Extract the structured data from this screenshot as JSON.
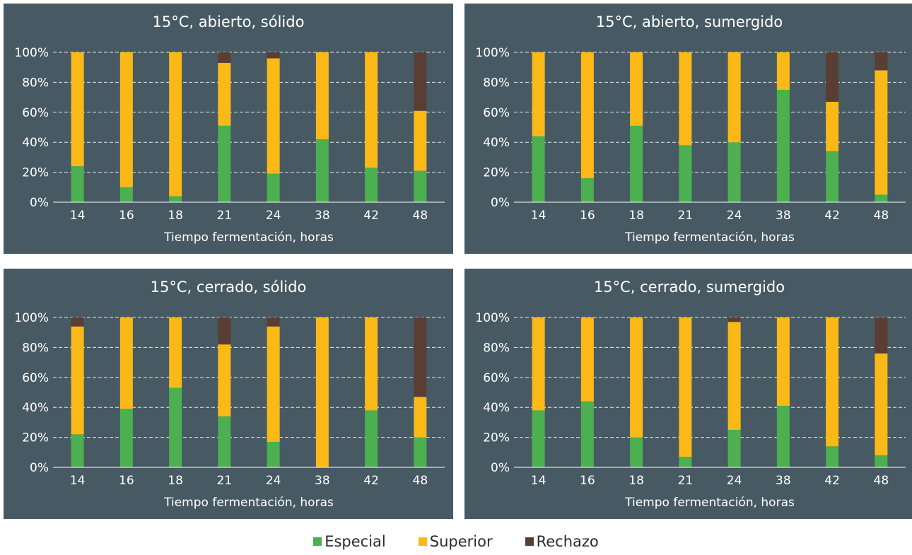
{
  "colors": {
    "especial": "#4caf50",
    "superior": "#fbb917",
    "rechazo": "#5a3d33",
    "panel": "#475a64",
    "grid": "#ffffff"
  },
  "legend": [
    {
      "key": "especial",
      "label": "Especial",
      "color": "#4caf50"
    },
    {
      "key": "superior",
      "label": "Superior",
      "color": "#fbb917"
    },
    {
      "key": "rechazo",
      "label": "Rechazo",
      "color": "#5a3d33"
    }
  ],
  "chart_data": [
    {
      "type": "bar",
      "stacked": true,
      "title": "15°C, abierto, sólido",
      "xlabel": "Tiempo fermentación, horas",
      "ylabel": "",
      "ylim": [
        0,
        100
      ],
      "yticks": [
        "0%",
        "20%",
        "40%",
        "60%",
        "80%",
        "100%"
      ],
      "categories": [
        "14",
        "16",
        "18",
        "21",
        "24",
        "38",
        "42",
        "48"
      ],
      "series": [
        {
          "name": "Especial",
          "values": [
            24,
            10,
            4,
            51,
            19,
            42,
            23,
            21
          ]
        },
        {
          "name": "Superior",
          "values": [
            76,
            90,
            96,
            42,
            77,
            58,
            77,
            40
          ]
        },
        {
          "name": "Rechazo",
          "values": [
            0,
            0,
            0,
            7,
            4,
            0,
            0,
            39
          ]
        }
      ]
    },
    {
      "type": "bar",
      "stacked": true,
      "title": "15°C, abierto, sumergido",
      "xlabel": "Tiempo fermentación, horas",
      "ylabel": "",
      "ylim": [
        0,
        100
      ],
      "yticks": [
        "0%",
        "20%",
        "40%",
        "60%",
        "80%",
        "100%"
      ],
      "categories": [
        "14",
        "16",
        "18",
        "21",
        "24",
        "38",
        "42",
        "48"
      ],
      "series": [
        {
          "name": "Especial",
          "values": [
            44,
            16,
            51,
            38,
            40,
            75,
            34,
            5
          ]
        },
        {
          "name": "Superior",
          "values": [
            56,
            84,
            49,
            62,
            60,
            25,
            33,
            83
          ]
        },
        {
          "name": "Rechazo",
          "values": [
            0,
            0,
            0,
            0,
            0,
            0,
            33,
            12
          ]
        }
      ]
    },
    {
      "type": "bar",
      "stacked": true,
      "title": "15°C, cerrado, sólido",
      "xlabel": "Tiempo fermentación, horas",
      "ylabel": "",
      "ylim": [
        0,
        100
      ],
      "yticks": [
        "0%",
        "20%",
        "40%",
        "60%",
        "80%",
        "100%"
      ],
      "categories": [
        "14",
        "16",
        "18",
        "21",
        "24",
        "38",
        "42",
        "48"
      ],
      "series": [
        {
          "name": "Especial",
          "values": [
            22,
            39,
            53,
            34,
            17,
            0,
            38,
            20
          ]
        },
        {
          "name": "Superior",
          "values": [
            72,
            61,
            47,
            48,
            77,
            100,
            62,
            27
          ]
        },
        {
          "name": "Rechazo",
          "values": [
            6,
            0,
            0,
            18,
            6,
            0,
            0,
            53
          ]
        }
      ]
    },
    {
      "type": "bar",
      "stacked": true,
      "title": "15°C, cerrado, sumergido",
      "xlabel": "Tiempo fermentación, horas",
      "ylabel": "",
      "ylim": [
        0,
        100
      ],
      "yticks": [
        "0%",
        "20%",
        "40%",
        "60%",
        "80%",
        "100%"
      ],
      "categories": [
        "14",
        "16",
        "18",
        "21",
        "24",
        "38",
        "42",
        "48"
      ],
      "series": [
        {
          "name": "Especial",
          "values": [
            38,
            44,
            20,
            7,
            25,
            41,
            14,
            8
          ]
        },
        {
          "name": "Superior",
          "values": [
            62,
            56,
            80,
            93,
            72,
            59,
            86,
            68
          ]
        },
        {
          "name": "Rechazo",
          "values": [
            0,
            0,
            0,
            0,
            3,
            0,
            0,
            24
          ]
        }
      ]
    }
  ]
}
